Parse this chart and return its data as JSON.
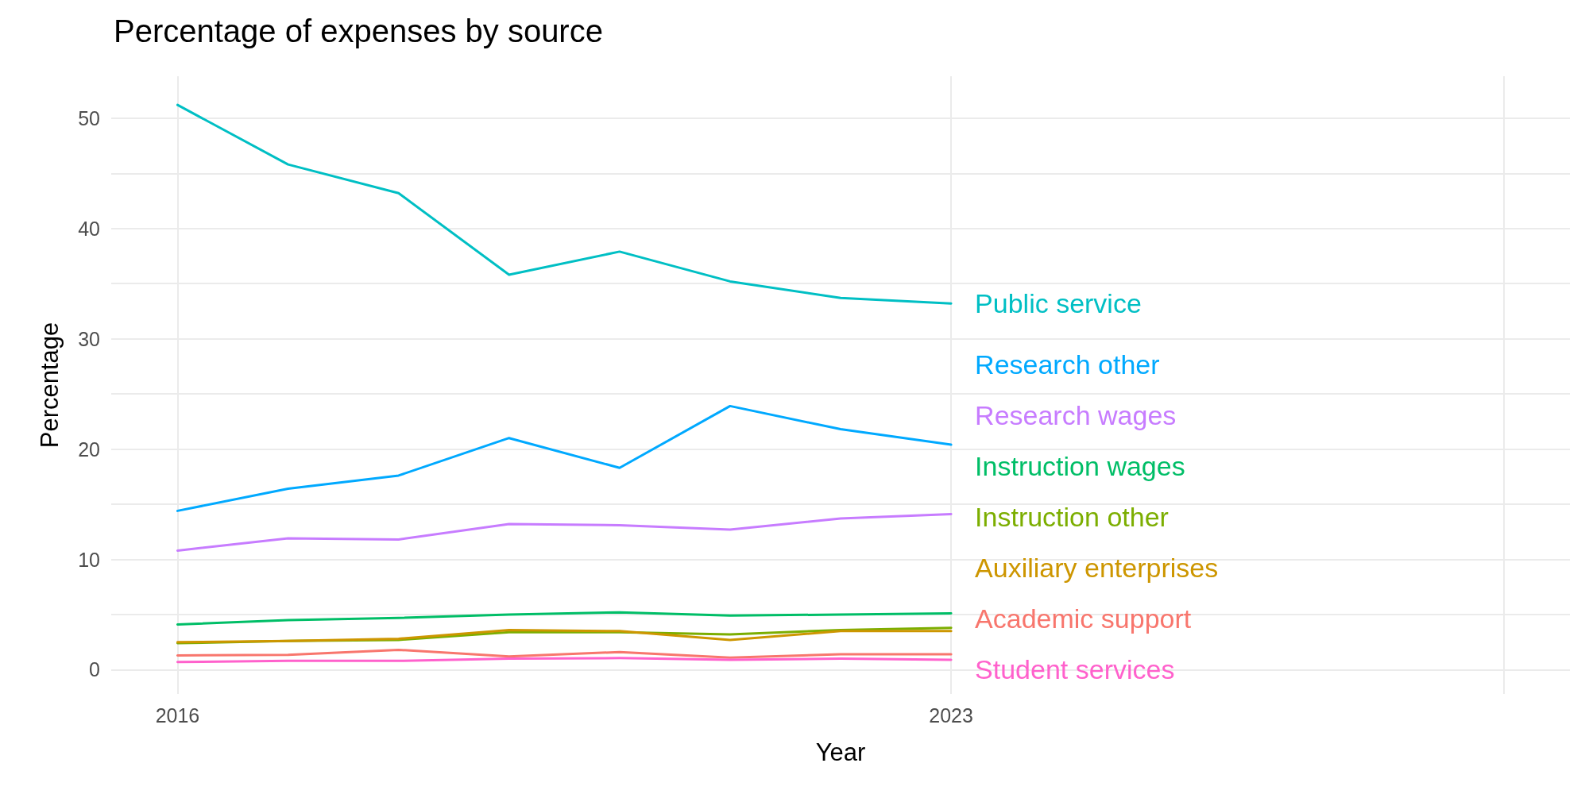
{
  "chart_data": {
    "type": "line",
    "title": "Percentage of expenses by source",
    "xlabel": "Year",
    "ylabel": "Percentage",
    "x": [
      2016,
      2017,
      2018,
      2019,
      2020,
      2021,
      2022,
      2023
    ],
    "xlim": [
      2015.4,
      2028.6
    ],
    "xticks": [
      2016,
      2023,
      {
        "value": 2028,
        "label": null
      }
    ],
    "ylim": [
      -2.2,
      53.8
    ],
    "yticks": [
      0,
      {
        "value": 5,
        "label": null
      },
      10,
      {
        "value": 15,
        "label": null
      },
      20,
      {
        "value": 25,
        "label": null
      },
      30,
      {
        "value": 35,
        "label": null
      },
      40,
      {
        "value": 45,
        "label": null
      },
      50
    ],
    "grid": true,
    "legend": false,
    "marker": "none",
    "line_style": "solid",
    "series": [
      {
        "name": "Public service",
        "color": "#00bfc4",
        "values": [
          51.2,
          45.8,
          43.2,
          35.8,
          37.9,
          35.2,
          33.7,
          33.2
        ]
      },
      {
        "name": "Research other",
        "color": "#00a9ff",
        "values": [
          14.4,
          16.4,
          17.6,
          21.0,
          18.3,
          23.9,
          21.8,
          20.4
        ]
      },
      {
        "name": "Research wages",
        "color": "#c77cff",
        "values": [
          10.8,
          11.9,
          11.8,
          13.2,
          13.1,
          12.7,
          13.7,
          14.1
        ]
      },
      {
        "name": "Instruction wages",
        "color": "#00be67",
        "values": [
          4.1,
          4.5,
          4.7,
          5.0,
          5.2,
          4.9,
          5.0,
          5.1
        ]
      },
      {
        "name": "Instruction other",
        "color": "#7cae00",
        "values": [
          2.4,
          2.6,
          2.7,
          3.4,
          3.4,
          3.2,
          3.6,
          3.8
        ]
      },
      {
        "name": "Auxiliary enterprises",
        "color": "#cd9600",
        "values": [
          2.5,
          2.6,
          2.8,
          3.6,
          3.5,
          2.7,
          3.5,
          3.5
        ]
      },
      {
        "name": "Academic support",
        "color": "#f8766d",
        "values": [
          1.3,
          1.35,
          1.8,
          1.2,
          1.6,
          1.1,
          1.4,
          1.4
        ]
      },
      {
        "name": "Student services",
        "color": "#ff61cc",
        "values": [
          0.7,
          0.8,
          0.8,
          1.0,
          1.05,
          0.9,
          1.0,
          0.9
        ]
      }
    ]
  }
}
